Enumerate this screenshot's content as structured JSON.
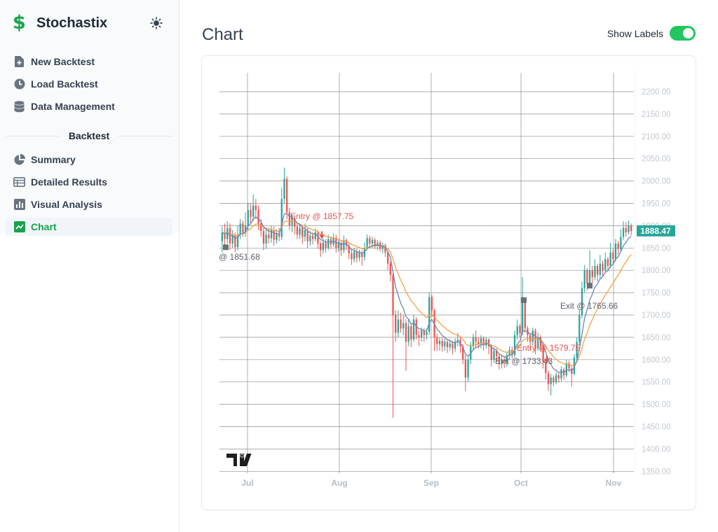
{
  "app": {
    "name": "Stochastix",
    "logo_symbol": "$"
  },
  "sidebar": {
    "items": [
      {
        "label": "New Backtest",
        "icon": "file-plus-icon"
      },
      {
        "label": "Load Backtest",
        "icon": "clock-icon"
      },
      {
        "label": "Data Management",
        "icon": "database-icon"
      }
    ],
    "section_title": "Backtest",
    "backtest_items": [
      {
        "label": "Summary",
        "icon": "pie-chart-icon"
      },
      {
        "label": "Detailed Results",
        "icon": "table-icon"
      },
      {
        "label": "Visual Analysis",
        "icon": "bar-chart-icon"
      },
      {
        "label": "Chart",
        "icon": "line-chart-icon",
        "active": true
      }
    ]
  },
  "header": {
    "title": "Chart",
    "show_labels_text": "Show Labels",
    "show_labels_on": true
  },
  "colors": {
    "accent": "#16a34a",
    "up": "#26a69a",
    "down": "#ef5350",
    "fast_ma": "#6b86b5",
    "slow_ma": "#f5a04a"
  },
  "chart_data": {
    "type": "candlestick",
    "y_ticks": [
      "2200.00",
      "2150.00",
      "2100.00",
      "2050.00",
      "2000.00",
      "1950.00",
      "1900.00",
      "1850.00",
      "1800.00",
      "1750.00",
      "1700.00",
      "1650.00",
      "1600.00",
      "1550.00",
      "1500.00",
      "1450.00",
      "1400.00",
      "1350.00"
    ],
    "ylim": [
      1350,
      2200
    ],
    "x_ticks": [
      "Jul",
      "Aug",
      "Sep",
      "Oct",
      "Nov"
    ],
    "last_price": "1888.47",
    "trade_labels": [
      {
        "text": "@ 1851.68",
        "kind": "exit",
        "price": 1851.68
      },
      {
        "text": "Entry @ 1857.75",
        "kind": "entry",
        "price": 1857.75
      },
      {
        "text": "Exit @ 1733.43",
        "kind": "exit",
        "price": 1733.43
      },
      {
        "text": "Entry @ 1579.75",
        "kind": "entry",
        "price": 1579.75
      },
      {
        "text": "Exit @ 1765.66",
        "kind": "exit",
        "price": 1765.66
      }
    ],
    "candles": [
      [
        1865,
        1885,
        1898,
        1840
      ],
      [
        1885,
        1870,
        1905,
        1855
      ],
      [
        1870,
        1895,
        1910,
        1860
      ],
      [
        1895,
        1860,
        1905,
        1845
      ],
      [
        1860,
        1878,
        1890,
        1850
      ],
      [
        1878,
        1852,
        1885,
        1840
      ],
      [
        1852,
        1880,
        1900,
        1845
      ],
      [
        1880,
        1905,
        1915,
        1870
      ],
      [
        1905,
        1885,
        1912,
        1875
      ],
      [
        1885,
        1900,
        1930,
        1875
      ],
      [
        1900,
        1935,
        1950,
        1890
      ],
      [
        1935,
        1920,
        1950,
        1905
      ],
      [
        1920,
        1945,
        1970,
        1910
      ],
      [
        1945,
        1935,
        1960,
        1915
      ],
      [
        1935,
        1905,
        1945,
        1890
      ],
      [
        1905,
        1888,
        1915,
        1875
      ],
      [
        1888,
        1860,
        1895,
        1845
      ],
      [
        1860,
        1880,
        1892,
        1848
      ],
      [
        1880,
        1872,
        1895,
        1860
      ],
      [
        1872,
        1890,
        1900,
        1862
      ],
      [
        1890,
        1868,
        1898,
        1855
      ],
      [
        1868,
        1882,
        1892,
        1860
      ],
      [
        1882,
        1875,
        1895,
        1865
      ],
      [
        1875,
        1960,
        1985,
        1868
      ],
      [
        1960,
        2005,
        2030,
        1950
      ],
      [
        2005,
        1930,
        2010,
        1915
      ],
      [
        1930,
        1900,
        1940,
        1890
      ],
      [
        1900,
        1915,
        1925,
        1885
      ],
      [
        1915,
        1898,
        1922,
        1880
      ],
      [
        1898,
        1880,
        1905,
        1870
      ],
      [
        1880,
        1895,
        1905,
        1870
      ],
      [
        1895,
        1875,
        1900,
        1860
      ],
      [
        1875,
        1890,
        1905,
        1865
      ],
      [
        1890,
        1865,
        1895,
        1850
      ],
      [
        1865,
        1878,
        1888,
        1855
      ],
      [
        1878,
        1870,
        1885,
        1858
      ],
      [
        1870,
        1885,
        1893,
        1865
      ],
      [
        1885,
        1860,
        1890,
        1848
      ],
      [
        1860,
        1845,
        1865,
        1830
      ],
      [
        1845,
        1862,
        1872,
        1838
      ],
      [
        1862,
        1850,
        1870,
        1840
      ],
      [
        1850,
        1870,
        1880,
        1845
      ],
      [
        1870,
        1858,
        1876,
        1848
      ],
      [
        1858,
        1873,
        1882,
        1852
      ],
      [
        1873,
        1850,
        1880,
        1840
      ],
      [
        1850,
        1862,
        1870,
        1842
      ],
      [
        1862,
        1845,
        1868,
        1832
      ],
      [
        1845,
        1868,
        1878,
        1838
      ],
      [
        1868,
        1855,
        1872,
        1845
      ],
      [
        1855,
        1838,
        1860,
        1825
      ],
      [
        1838,
        1825,
        1848,
        1812
      ],
      [
        1825,
        1842,
        1850,
        1818
      ],
      [
        1842,
        1828,
        1848,
        1818
      ],
      [
        1828,
        1840,
        1846,
        1820
      ],
      [
        1840,
        1830,
        1845,
        1810
      ],
      [
        1830,
        1850,
        1862,
        1822
      ],
      [
        1850,
        1872,
        1880,
        1845
      ],
      [
        1872,
        1860,
        1878,
        1852
      ],
      [
        1860,
        1868,
        1875,
        1850
      ],
      [
        1868,
        1855,
        1872,
        1848
      ],
      [
        1855,
        1862,
        1868,
        1845
      ],
      [
        1862,
        1848,
        1866,
        1842
      ],
      [
        1848,
        1856,
        1862,
        1838
      ],
      [
        1856,
        1840,
        1860,
        1830
      ],
      [
        1840,
        1815,
        1845,
        1800
      ],
      [
        1815,
        1790,
        1820,
        1775
      ],
      [
        1790,
        1700,
        1795,
        1470
      ],
      [
        1700,
        1660,
        1710,
        1640
      ],
      [
        1660,
        1690,
        1710,
        1650
      ],
      [
        1690,
        1670,
        1705,
        1660
      ],
      [
        1670,
        1682,
        1700,
        1655
      ],
      [
        1682,
        1640,
        1690,
        1575
      ],
      [
        1640,
        1675,
        1690,
        1630
      ],
      [
        1675,
        1645,
        1682,
        1628
      ],
      [
        1645,
        1690,
        1700,
        1640
      ],
      [
        1690,
        1655,
        1695,
        1645
      ],
      [
        1655,
        1650,
        1665,
        1630
      ],
      [
        1650,
        1665,
        1672,
        1640
      ],
      [
        1665,
        1655,
        1670,
        1640
      ],
      [
        1655,
        1662,
        1670,
        1645
      ],
      [
        1662,
        1740,
        1750,
        1655
      ],
      [
        1740,
        1710,
        1745,
        1695
      ],
      [
        1710,
        1650,
        1715,
        1620
      ],
      [
        1650,
        1635,
        1658,
        1620
      ],
      [
        1635,
        1642,
        1650,
        1620
      ],
      [
        1642,
        1630,
        1650,
        1618
      ],
      [
        1630,
        1640,
        1648,
        1620
      ],
      [
        1640,
        1628,
        1645,
        1615
      ],
      [
        1628,
        1636,
        1645,
        1620
      ],
      [
        1636,
        1625,
        1642,
        1612
      ],
      [
        1625,
        1640,
        1648,
        1618
      ],
      [
        1640,
        1645,
        1660,
        1630
      ],
      [
        1645,
        1630,
        1650,
        1615
      ],
      [
        1630,
        1600,
        1635,
        1590
      ],
      [
        1600,
        1560,
        1610,
        1530
      ],
      [
        1560,
        1600,
        1610,
        1550
      ],
      [
        1600,
        1630,
        1640,
        1590
      ],
      [
        1630,
        1650,
        1658,
        1620
      ],
      [
        1650,
        1640,
        1665,
        1628
      ],
      [
        1640,
        1635,
        1650,
        1625
      ],
      [
        1635,
        1648,
        1655,
        1625
      ],
      [
        1648,
        1632,
        1652,
        1620
      ],
      [
        1632,
        1645,
        1650,
        1625
      ],
      [
        1645,
        1630,
        1648,
        1612
      ],
      [
        1630,
        1600,
        1635,
        1585
      ],
      [
        1600,
        1620,
        1628,
        1592
      ],
      [
        1620,
        1608,
        1625,
        1595
      ],
      [
        1608,
        1590,
        1612,
        1578
      ],
      [
        1590,
        1600,
        1610,
        1580
      ],
      [
        1600,
        1595,
        1608,
        1582
      ],
      [
        1595,
        1610,
        1618,
        1585
      ],
      [
        1610,
        1622,
        1630,
        1600
      ],
      [
        1622,
        1610,
        1630,
        1602
      ],
      [
        1610,
        1655,
        1665,
        1605
      ],
      [
        1655,
        1675,
        1690,
        1645
      ],
      [
        1675,
        1660,
        1680,
        1650
      ],
      [
        1660,
        1730,
        1785,
        1655
      ],
      [
        1730,
        1670,
        1735,
        1660
      ],
      [
        1670,
        1655,
        1675,
        1640
      ],
      [
        1655,
        1640,
        1660,
        1620
      ],
      [
        1640,
        1665,
        1672,
        1632
      ],
      [
        1665,
        1625,
        1670,
        1612
      ],
      [
        1625,
        1650,
        1660,
        1620
      ],
      [
        1650,
        1630,
        1655,
        1618
      ],
      [
        1630,
        1595,
        1635,
        1580
      ],
      [
        1595,
        1570,
        1600,
        1555
      ],
      [
        1570,
        1545,
        1575,
        1530
      ],
      [
        1545,
        1560,
        1568,
        1520
      ],
      [
        1560,
        1550,
        1565,
        1540
      ],
      [
        1550,
        1565,
        1572,
        1545
      ],
      [
        1565,
        1558,
        1570,
        1548
      ],
      [
        1558,
        1578,
        1585,
        1552
      ],
      [
        1578,
        1565,
        1582,
        1555
      ],
      [
        1565,
        1592,
        1600,
        1560
      ],
      [
        1592,
        1580,
        1598,
        1572
      ],
      [
        1580,
        1568,
        1585,
        1540
      ],
      [
        1568,
        1605,
        1612,
        1565
      ],
      [
        1605,
        1640,
        1650,
        1600
      ],
      [
        1640,
        1700,
        1712,
        1632
      ],
      [
        1700,
        1760,
        1775,
        1692
      ],
      [
        1760,
        1800,
        1812,
        1750
      ],
      [
        1800,
        1770,
        1805,
        1755
      ],
      [
        1770,
        1800,
        1845,
        1765
      ],
      [
        1800,
        1785,
        1810,
        1770
      ],
      [
        1785,
        1810,
        1825,
        1778
      ],
      [
        1810,
        1790,
        1815,
        1775
      ],
      [
        1790,
        1815,
        1835,
        1782
      ],
      [
        1815,
        1800,
        1822,
        1788
      ],
      [
        1800,
        1825,
        1840,
        1795
      ],
      [
        1825,
        1810,
        1830,
        1798
      ],
      [
        1810,
        1840,
        1862,
        1805
      ],
      [
        1840,
        1825,
        1848,
        1815
      ],
      [
        1825,
        1860,
        1870,
        1820
      ],
      [
        1860,
        1848,
        1866,
        1835
      ],
      [
        1848,
        1875,
        1892,
        1842
      ],
      [
        1875,
        1895,
        1910,
        1868
      ],
      [
        1895,
        1885,
        1908,
        1875
      ],
      [
        1885,
        1900,
        1912,
        1880
      ],
      [
        1900,
        1888,
        1905,
        1878
      ]
    ]
  }
}
